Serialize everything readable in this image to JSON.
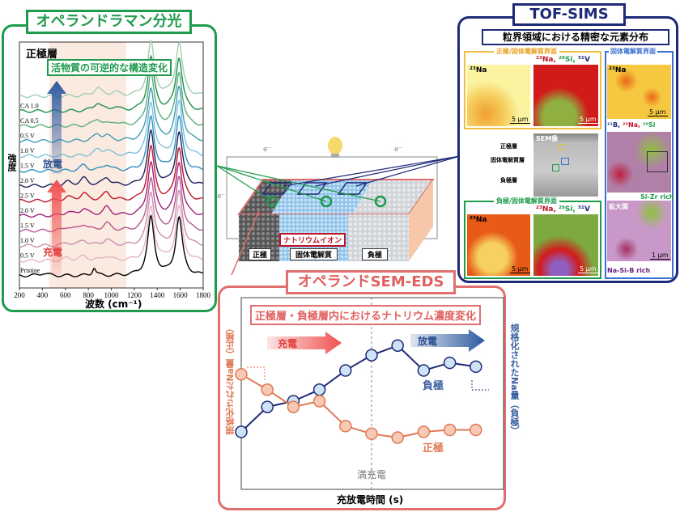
{
  "raman": {
    "title": "オペランドラマン分光",
    "layer_label": "正極層",
    "subtitle": "活物質の可逆的な構造変化",
    "y_label": "強度",
    "discharge_label": "放電",
    "charge_label": "充電",
    "accent_color": "#1e9b4c"
  },
  "sims": {
    "title": "TOF-SIMS",
    "subtitle": "粒界領域における精密な元素分布",
    "cathode_interface": "正極/固体電解質界面",
    "anode_interface": "負極/固体電解質界面",
    "electrolyte_interface": "固体電解質界面",
    "na_label": "²³Na",
    "multi_label_red": "²³Na, ",
    "multi_label_green": "²⁸Si, ",
    "multi_label_blue": "⁵¹V",
    "b_label_1": "¹¹B, ",
    "b_label_2": "²³Na, ",
    "b_label_3": "²⁸Si",
    "scale_5": "5 µm",
    "scale_1": "1 µm",
    "sem_label": "SEM像",
    "layer_cathode": "正極層",
    "layer_electrolyte": "固体電解質層",
    "layer_anode": "負極層",
    "zoom_label": "拡大図",
    "sizr": "Si-Zr rich",
    "nasib": "Na-Si-B rich",
    "accent_color": "#1e2a78"
  },
  "battery": {
    "electron": "e⁻",
    "ion_label": "ナトリウムイオン",
    "cathode": "正極",
    "electrolyte": "固体電解質",
    "anode": "負極"
  },
  "sem_eds": {
    "title": "オペランドSEM-EDS",
    "subtitle": "正極層・負極層内におけるナトリウム濃度変化",
    "charge_label": "充電",
    "discharge_label": "放電",
    "left_axis": "規格化されたNa量（正極）",
    "right_axis": "規格化されたNa量（負極）",
    "anode_label": "負極",
    "cathode_label": "正極",
    "full_charge": "満充電",
    "x_label": "充放電時間 (s)",
    "accent_color": "#e06a6a"
  },
  "chart_data": [
    {
      "type": "line",
      "title": "",
      "xlabel": "波数 (cm⁻¹)",
      "ylabel": "強度",
      "xlim": [
        200,
        1800
      ],
      "x_ticks": [
        "200",
        "400",
        "600",
        "800",
        "1000",
        "1200",
        "1400",
        "1600",
        "1800"
      ],
      "stacked_offset": true,
      "series": [
        {
          "name": "Pristine",
          "color": "#000000",
          "peaks": [
            [
              850,
              0.9
            ],
            [
              410,
              0.3
            ],
            [
              1345,
              6.5
            ],
            [
              1590,
              6.5
            ]
          ]
        },
        {
          "name": "0.5 V",
          "color": "#e7b4c2",
          "peaks": [
            [
              620,
              0.3
            ],
            [
              760,
              0.5
            ],
            [
              960,
              0.5
            ],
            [
              1345,
              6
            ],
            [
              1590,
              6
            ]
          ]
        },
        {
          "name": "1.0 V",
          "color": "#c98fb0",
          "peaks": [
            [
              620,
              0.3
            ],
            [
              760,
              0.6
            ],
            [
              960,
              0.7
            ],
            [
              1345,
              6
            ],
            [
              1590,
              6
            ]
          ]
        },
        {
          "name": "1.5 V",
          "color": "#b8578e",
          "peaks": [
            [
              620,
              0.4
            ],
            [
              760,
              0.7
            ],
            [
              960,
              0.8
            ],
            [
              1345,
              6
            ],
            [
              1590,
              6
            ]
          ]
        },
        {
          "name": "2.0 V",
          "color": "#a01f7a",
          "peaks": [
            [
              620,
              0.4
            ],
            [
              760,
              0.8
            ],
            [
              960,
              0.9
            ],
            [
              1345,
              6
            ],
            [
              1590,
              6
            ]
          ]
        },
        {
          "name": "2.5 V",
          "color": "#c0142b",
          "peaks": [
            [
              620,
              0.4
            ],
            [
              760,
              0.8
            ],
            [
              960,
              0.9
            ],
            [
              1345,
              6
            ],
            [
              1590,
              6
            ]
          ]
        },
        {
          "name": "2.0 V",
          "color": "#1c1f5e",
          "peaks": [
            [
              620,
              0.4
            ],
            [
              760,
              0.8
            ],
            [
              960,
              0.9
            ],
            [
              1345,
              6
            ],
            [
              1590,
              6
            ]
          ]
        },
        {
          "name": "1.5 V",
          "color": "#2f8fc0",
          "peaks": [
            [
              760,
              0.6
            ],
            [
              960,
              0.7
            ],
            [
              1345,
              6
            ],
            [
              1590,
              6
            ]
          ]
        },
        {
          "name": "1.0 V",
          "color": "#7dc1d9",
          "peaks": [
            [
              880,
              0.6
            ],
            [
              960,
              0.6
            ],
            [
              1345,
              6
            ],
            [
              1590,
              6
            ]
          ]
        },
        {
          "name": "0.5 V",
          "color": "#3f9cb5",
          "peaks": [
            [
              880,
              0.7
            ],
            [
              960,
              0.5
            ],
            [
              1345,
              6
            ],
            [
              1590,
              6
            ]
          ]
        },
        {
          "name": "CA 0.5",
          "color": "#5aae7a",
          "peaks": [
            [
              880,
              0.8
            ],
            [
              1030,
              0.4
            ],
            [
              1345,
              6
            ],
            [
              1590,
              6
            ]
          ]
        },
        {
          "name": "CA 1.0",
          "color": "#1e8f4e",
          "peaks": [
            [
              880,
              0.9
            ],
            [
              1030,
              0.4
            ],
            [
              1345,
              6
            ],
            [
              1590,
              6
            ]
          ]
        },
        {
          "name": "",
          "color": "#9fcfae",
          "peaks": [
            [
              880,
              0.9
            ],
            [
              1030,
              0.4
            ],
            [
              1345,
              6
            ],
            [
              1590,
              6
            ]
          ]
        }
      ],
      "shaded_range": [
        460,
        1130
      ]
    },
    {
      "type": "line",
      "title": "正極層・負極層内におけるナトリウム濃度変化",
      "xlabel": "充放電時間 (s)",
      "ylabel_left": "規格化されたNa量（正極）",
      "ylabel_right": "規格化されたNa量（負極）",
      "ylim": [
        0,
        1
      ],
      "x": [
        1,
        2,
        3,
        4,
        5,
        6,
        7,
        8,
        9,
        10
      ],
      "full_charge_x": 6,
      "series": [
        {
          "name": "負極",
          "color": "#1e2a78",
          "fill": "#cfe3f7",
          "values": [
            0.3,
            0.43,
            0.46,
            0.52,
            0.62,
            0.7,
            0.75,
            0.62,
            0.66,
            0.64
          ]
        },
        {
          "name": "正極",
          "color": "#e07a55",
          "fill": "#f8c9b5",
          "values": [
            0.6,
            0.52,
            0.43,
            0.46,
            0.33,
            0.29,
            0.27,
            0.3,
            0.31,
            0.31
          ]
        }
      ]
    }
  ]
}
